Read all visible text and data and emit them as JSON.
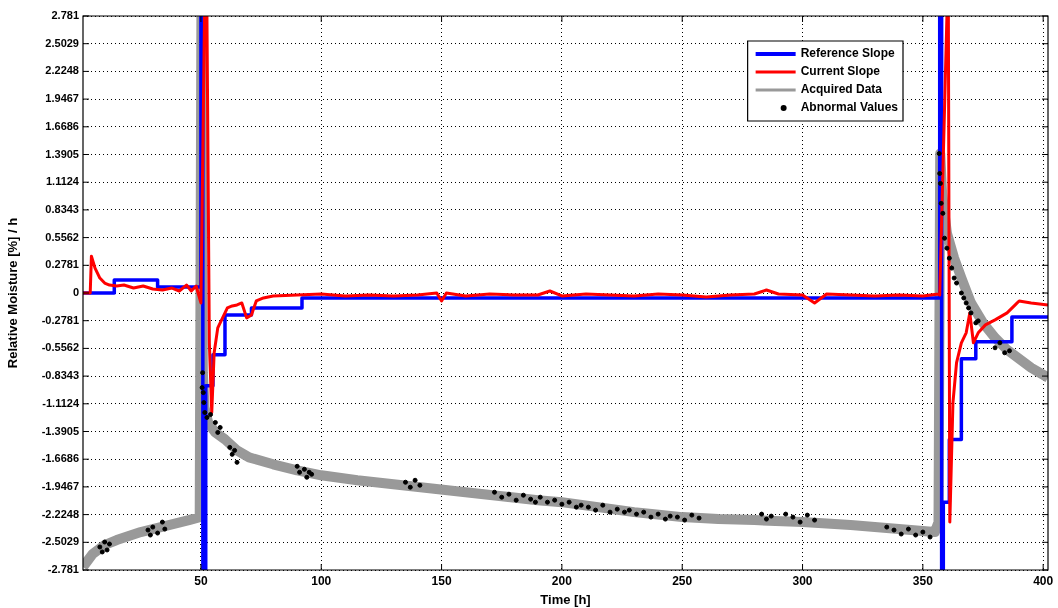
{
  "chart_data": {
    "type": "line",
    "xlabel": "Time [h]",
    "ylabel": "Relative Moisture [%] / h",
    "xlim": [
      1,
      402
    ],
    "xticks": [
      50,
      100,
      150,
      200,
      250,
      300,
      350,
      400
    ],
    "ylim": [
      -2.781,
      2.781
    ],
    "yticks": [
      -2.781,
      -2.5029,
      -2.2248,
      -1.9467,
      -1.6686,
      -1.3905,
      -1.1124,
      -0.8343,
      -0.5562,
      -0.2781,
      0,
      0.2781,
      0.5562,
      0.8343,
      1.1124,
      1.3905,
      1.6686,
      1.9467,
      2.2248,
      2.5029,
      2.781
    ],
    "grid": true,
    "legend": "top right",
    "series": [
      {
        "name": "Reference Slope",
        "type": "step",
        "color": "#0000ff",
        "x": [
          1,
          14,
          32,
          50,
          50.8,
          52,
          55,
          60,
          71,
          92,
          357,
          357.8,
          358.5,
          361,
          366,
          372,
          387,
          402
        ],
        "values": [
          0,
          0.13,
          0.06,
          2.78,
          -2.78,
          -0.93,
          -0.62,
          -0.22,
          -0.15,
          -0.05,
          2.78,
          -2.78,
          -2.1,
          -1.47,
          -0.66,
          -0.49,
          -0.24,
          -0.24
        ]
      },
      {
        "name": "Current Slope",
        "color": "#ff0000",
        "x": [
          1,
          4,
          4.5,
          6,
          8,
          10,
          12,
          15,
          18,
          22,
          26,
          30,
          34,
          38,
          41,
          44,
          46,
          48,
          50,
          51.5,
          52.5,
          53.5,
          54.5,
          55.5,
          57,
          59,
          61,
          63,
          65,
          67,
          69,
          71,
          73,
          76,
          80,
          90,
          100,
          110,
          120,
          130,
          140,
          148,
          150,
          152,
          160,
          170,
          180,
          190,
          195,
          200,
          210,
          220,
          230,
          240,
          250,
          260,
          270,
          280,
          285,
          290,
          300,
          305,
          310,
          320,
          330,
          340,
          350,
          356.5,
          357,
          360,
          360.6,
          361.2,
          362.5,
          364,
          366,
          368,
          369.5,
          371,
          373,
          376,
          380,
          385,
          390,
          395,
          402
        ],
        "values": [
          0,
          0,
          0.37,
          0.25,
          0.15,
          0.1,
          0.08,
          0.07,
          0.08,
          0.05,
          0.07,
          0.04,
          0.03,
          0.05,
          0.02,
          0.08,
          0.02,
          0.07,
          -0.1,
          2.78,
          2.78,
          -0.5,
          -1.2,
          -0.6,
          -0.35,
          -0.25,
          -0.15,
          -0.13,
          -0.12,
          -0.1,
          -0.25,
          -0.22,
          -0.08,
          -0.05,
          -0.03,
          -0.02,
          -0.01,
          -0.03,
          -0.02,
          -0.03,
          -0.02,
          0.0,
          -0.08,
          0.0,
          -0.03,
          -0.01,
          -0.02,
          -0.02,
          0.02,
          -0.03,
          -0.01,
          -0.02,
          -0.03,
          -0.01,
          -0.02,
          -0.04,
          -0.02,
          -0.01,
          0.03,
          -0.01,
          -0.02,
          -0.1,
          -0.01,
          -0.02,
          -0.03,
          -0.02,
          -0.03,
          -0.01,
          -0.02,
          2.78,
          2.78,
          -2.3,
          -1.1,
          -0.7,
          -0.5,
          -0.4,
          -0.2,
          -0.5,
          -0.4,
          -0.32,
          -0.27,
          -0.2,
          -0.08,
          -0.1,
          -0.12
        ]
      },
      {
        "name": "Acquired Data",
        "color": "#999999",
        "x": [
          1,
          5,
          10,
          15,
          20,
          25,
          30,
          35,
          40,
          45,
          49.5,
          50.2,
          50.8,
          51.5,
          53,
          56,
          60,
          65,
          70,
          80,
          90,
          100,
          115,
          130,
          145,
          160,
          175,
          190,
          200,
          215,
          230,
          250,
          265,
          280,
          300,
          320,
          340,
          355,
          356.5,
          357.2,
          358,
          360,
          363,
          366,
          370,
          375,
          380,
          385,
          390,
          395,
          402
        ],
        "values": [
          -2.75,
          -2.62,
          -2.53,
          -2.48,
          -2.44,
          -2.4,
          -2.37,
          -2.34,
          -2.31,
          -2.28,
          -2.25,
          2.78,
          -0.8,
          -1.15,
          -1.3,
          -1.4,
          -1.47,
          -1.58,
          -1.65,
          -1.72,
          -1.78,
          -1.83,
          -1.88,
          -1.92,
          -1.96,
          -2.0,
          -2.04,
          -2.08,
          -2.1,
          -2.15,
          -2.2,
          -2.25,
          -2.27,
          -2.28,
          -2.3,
          -2.33,
          -2.37,
          -2.4,
          -2.3,
          1.4,
          1.0,
          0.6,
          0.35,
          0.15,
          -0.1,
          -0.3,
          -0.45,
          -0.57,
          -0.66,
          -0.75,
          -0.85
        ]
      },
      {
        "name": "Abnormal Values",
        "type": "scatter",
        "color": "#000000",
        "marker": "circle",
        "x": [
          8,
          9,
          10,
          11,
          12,
          28,
          29,
          30,
          32,
          34,
          35,
          50.5,
          50.7,
          51,
          51.2,
          51.6,
          52.5,
          54,
          56,
          57,
          58,
          62,
          63,
          64,
          65,
          90,
          91,
          93,
          94,
          95,
          96,
          135,
          137,
          139,
          141,
          172,
          175,
          178,
          181,
          184,
          187,
          189,
          191,
          194,
          197,
          200,
          203,
          206,
          208,
          211,
          214,
          217,
          220,
          223,
          226,
          228,
          231,
          234,
          237,
          240,
          243,
          245,
          248,
          251,
          254,
          257,
          283,
          285,
          287,
          293,
          296,
          299,
          302,
          305,
          335,
          338,
          341,
          344,
          347,
          350,
          353,
          356.8,
          357,
          357.3,
          357.6,
          358.3,
          359,
          360,
          361,
          362,
          363,
          364,
          366,
          367,
          368,
          369,
          370,
          372,
          373,
          380,
          382,
          384,
          386
        ],
        "values": [
          -2.55,
          -2.6,
          -2.5,
          -2.58,
          -2.52,
          -2.38,
          -2.43,
          -2.35,
          -2.41,
          -2.3,
          -2.37,
          -0.95,
          -0.8,
          -1.0,
          -1.1,
          -1.2,
          -1.25,
          -1.22,
          -1.3,
          -1.4,
          -1.35,
          -1.55,
          -1.62,
          -1.58,
          -1.7,
          -1.74,
          -1.8,
          -1.77,
          -1.85,
          -1.8,
          -1.82,
          -1.9,
          -1.95,
          -1.88,
          -1.93,
          -2.0,
          -2.05,
          -2.02,
          -2.08,
          -2.03,
          -2.07,
          -2.1,
          -2.05,
          -2.1,
          -2.08,
          -2.12,
          -2.1,
          -2.15,
          -2.13,
          -2.15,
          -2.18,
          -2.13,
          -2.2,
          -2.17,
          -2.2,
          -2.18,
          -2.22,
          -2.2,
          -2.25,
          -2.22,
          -2.27,
          -2.24,
          -2.25,
          -2.28,
          -2.23,
          -2.26,
          -2.22,
          -2.27,
          -2.24,
          -2.22,
          -2.25,
          -2.3,
          -2.23,
          -2.28,
          -2.35,
          -2.38,
          -2.42,
          -2.37,
          -2.43,
          -2.4,
          -2.45,
          1.4,
          1.2,
          1.1,
          0.9,
          0.8,
          0.55,
          0.45,
          0.35,
          0.25,
          0.15,
          0.1,
          0.0,
          -0.05,
          -0.1,
          -0.15,
          -0.2,
          -0.3,
          -0.28,
          -0.55,
          -0.5,
          -0.6,
          -0.58
        ]
      }
    ]
  }
}
